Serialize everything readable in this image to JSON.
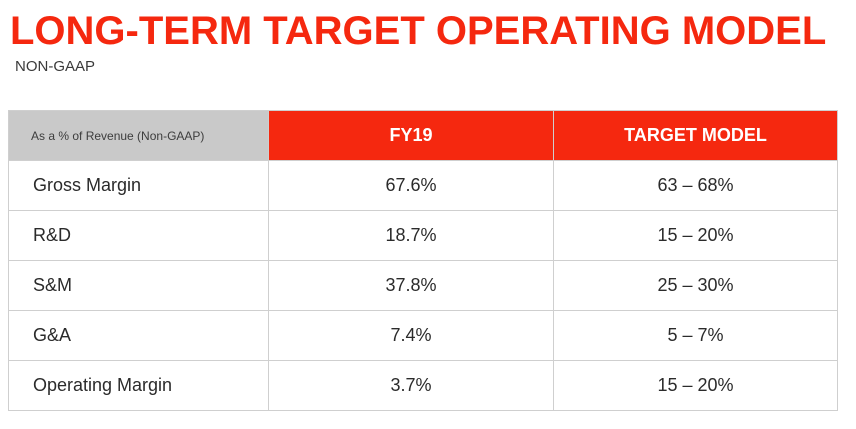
{
  "title": "LONG-TERM TARGET OPERATING MODEL",
  "subtitle": "NON-GAAP",
  "table": {
    "corner_label": "As a % of Revenue (Non-GAAP)",
    "columns": [
      "FY19",
      "TARGET MODEL"
    ],
    "rows": [
      {
        "label": "Gross Margin",
        "fy19": "67.6%",
        "target": "63 – 68%"
      },
      {
        "label": "R&D",
        "fy19": "18.7%",
        "target": "15 – 20%"
      },
      {
        "label": "S&M",
        "fy19": "37.8%",
        "target": "25 – 30%"
      },
      {
        "label": "G&A",
        "fy19": "7.4%",
        "target": "5 – 7%"
      },
      {
        "label": "Operating Margin",
        "fy19": "3.7%",
        "target": "15 – 20%"
      }
    ]
  },
  "colors": {
    "accent": "#f5280f",
    "header_gray": "#c9c9c9",
    "border": "#cfcfcf"
  }
}
